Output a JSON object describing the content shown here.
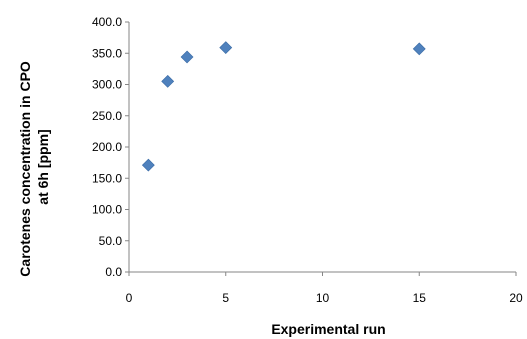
{
  "chart_data": {
    "type": "scatter",
    "title": "",
    "xlabel": "Experimental run",
    "ylabel_lines": [
      "Carotenes concentration in CPO",
      "at 6h [ppm]"
    ],
    "xlim": [
      0,
      20
    ],
    "ylim": [
      0,
      400
    ],
    "x_ticks": [
      "0",
      "5",
      "10",
      "15",
      "20"
    ],
    "y_ticks": [
      "0.0",
      "50.0",
      "100.0",
      "150.0",
      "200.0",
      "250.0",
      "300.0",
      "350.0",
      "400.0"
    ],
    "grid": false,
    "legend": "none",
    "marker": "diamond",
    "marker_color": "#4F81BD",
    "series": [
      {
        "x": [
          1,
          2,
          3,
          5,
          15
        ],
        "y": [
          171,
          305,
          344,
          359,
          357
        ]
      }
    ]
  }
}
